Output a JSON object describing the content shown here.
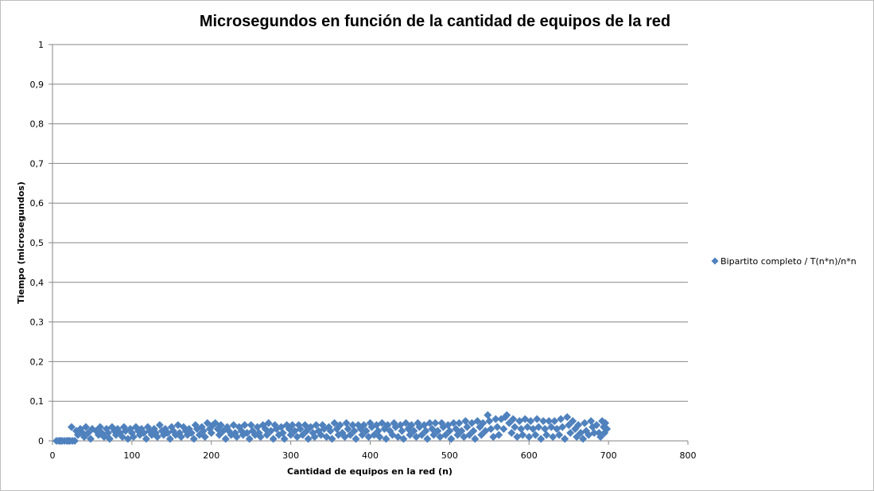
{
  "chart_data": {
    "type": "scatter",
    "title": "Microsegundos en función de la cantidad de equipos de la red",
    "xlabel": "Cantidad  de equipos en la red (n)",
    "ylabel": "Tiempo (microsegundos)",
    "xlim": [
      0,
      800
    ],
    "ylim": [
      0,
      1
    ],
    "x_ticks": [
      "0",
      "100",
      "200",
      "300",
      "400",
      "500",
      "600",
      "700",
      "800"
    ],
    "y_ticks": [
      "0",
      "0,1",
      "0,2",
      "0,3",
      "0,4",
      "0,5",
      "0,6",
      "0,7",
      "0,8",
      "0,9",
      "1"
    ],
    "grid": "horizontal",
    "legend_position": "right",
    "colors": {
      "series": "#4f81bd",
      "grid": "#868686",
      "axis": "#868686"
    },
    "series": [
      {
        "name": "Bipartito completo / T(n*n)/n*n",
        "marker": "diamond",
        "points": [
          [
            5,
            0.0
          ],
          [
            8,
            0.0
          ],
          [
            10,
            0.0
          ],
          [
            12,
            0.0
          ],
          [
            15,
            0.0
          ],
          [
            18,
            0.0
          ],
          [
            20,
            0.0
          ],
          [
            22,
            0.0
          ],
          [
            25,
            0.0
          ],
          [
            28,
            0.0
          ],
          [
            24,
            0.035
          ],
          [
            30,
            0.025
          ],
          [
            32,
            0.015
          ],
          [
            35,
            0.03
          ],
          [
            38,
            0.02
          ],
          [
            40,
            0.01
          ],
          [
            42,
            0.035
          ],
          [
            45,
            0.02
          ],
          [
            48,
            0.005
          ],
          [
            50,
            0.03
          ],
          [
            55,
            0.025
          ],
          [
            58,
            0.015
          ],
          [
            60,
            0.035
          ],
          [
            62,
            0.02
          ],
          [
            65,
            0.01
          ],
          [
            68,
            0.03
          ],
          [
            70,
            0.02
          ],
          [
            72,
            0.005
          ],
          [
            75,
            0.035
          ],
          [
            78,
            0.025
          ],
          [
            80,
            0.015
          ],
          [
            82,
            0.03
          ],
          [
            85,
            0.02
          ],
          [
            88,
            0.01
          ],
          [
            90,
            0.035
          ],
          [
            92,
            0.025
          ],
          [
            95,
            0.005
          ],
          [
            98,
            0.03
          ],
          [
            100,
            0.02
          ],
          [
            102,
            0.01
          ],
          [
            105,
            0.035
          ],
          [
            108,
            0.025
          ],
          [
            110,
            0.015
          ],
          [
            112,
            0.03
          ],
          [
            115,
            0.02
          ],
          [
            118,
            0.005
          ],
          [
            120,
            0.035
          ],
          [
            122,
            0.025
          ],
          [
            125,
            0.015
          ],
          [
            128,
            0.03
          ],
          [
            130,
            0.02
          ],
          [
            132,
            0.01
          ],
          [
            135,
            0.04
          ],
          [
            138,
            0.025
          ],
          [
            140,
            0.015
          ],
          [
            142,
            0.03
          ],
          [
            145,
            0.02
          ],
          [
            148,
            0.005
          ],
          [
            150,
            0.035
          ],
          [
            152,
            0.025
          ],
          [
            155,
            0.015
          ],
          [
            158,
            0.04
          ],
          [
            160,
            0.02
          ],
          [
            162,
            0.01
          ],
          [
            165,
            0.035
          ],
          [
            168,
            0.025
          ],
          [
            170,
            0.015
          ],
          [
            172,
            0.03
          ],
          [
            175,
            0.02
          ],
          [
            178,
            0.005
          ],
          [
            180,
            0.04
          ],
          [
            182,
            0.03
          ],
          [
            185,
            0.015
          ],
          [
            188,
            0.035
          ],
          [
            190,
            0.025
          ],
          [
            192,
            0.01
          ],
          [
            195,
            0.045
          ],
          [
            198,
            0.03
          ],
          [
            200,
            0.02
          ],
          [
            202,
            0.04
          ],
          [
            205,
            0.045
          ],
          [
            208,
            0.03
          ],
          [
            210,
            0.015
          ],
          [
            212,
            0.04
          ],
          [
            215,
            0.025
          ],
          [
            218,
            0.005
          ],
          [
            220,
            0.035
          ],
          [
            222,
            0.025
          ],
          [
            225,
            0.015
          ],
          [
            228,
            0.04
          ],
          [
            230,
            0.02
          ],
          [
            232,
            0.01
          ],
          [
            235,
            0.035
          ],
          [
            238,
            0.025
          ],
          [
            240,
            0.015
          ],
          [
            242,
            0.04
          ],
          [
            245,
            0.02
          ],
          [
            248,
            0.005
          ],
          [
            250,
            0.04
          ],
          [
            252,
            0.025
          ],
          [
            255,
            0.015
          ],
          [
            258,
            0.035
          ],
          [
            260,
            0.02
          ],
          [
            262,
            0.01
          ],
          [
            265,
            0.04
          ],
          [
            268,
            0.03
          ],
          [
            270,
            0.015
          ],
          [
            272,
            0.045
          ],
          [
            275,
            0.025
          ],
          [
            278,
            0.005
          ],
          [
            280,
            0.04
          ],
          [
            282,
            0.03
          ],
          [
            285,
            0.015
          ],
          [
            288,
            0.035
          ],
          [
            290,
            0.02
          ],
          [
            292,
            0.005
          ],
          [
            295,
            0.04
          ],
          [
            298,
            0.03
          ],
          [
            300,
            0.015
          ],
          [
            302,
            0.04
          ],
          [
            305,
            0.025
          ],
          [
            308,
            0.01
          ],
          [
            310,
            0.04
          ],
          [
            312,
            0.03
          ],
          [
            315,
            0.015
          ],
          [
            318,
            0.04
          ],
          [
            320,
            0.025
          ],
          [
            322,
            0.005
          ],
          [
            325,
            0.035
          ],
          [
            328,
            0.02
          ],
          [
            330,
            0.01
          ],
          [
            332,
            0.04
          ],
          [
            335,
            0.025
          ],
          [
            338,
            0.015
          ],
          [
            340,
            0.04
          ],
          [
            342,
            0.03
          ],
          [
            345,
            0.01
          ],
          [
            348,
            0.035
          ],
          [
            350,
            0.025
          ],
          [
            352,
            0.005
          ],
          [
            355,
            0.045
          ],
          [
            358,
            0.03
          ],
          [
            360,
            0.015
          ],
          [
            362,
            0.04
          ],
          [
            365,
            0.02
          ],
          [
            368,
            0.01
          ],
          [
            370,
            0.045
          ],
          [
            372,
            0.03
          ],
          [
            375,
            0.015
          ],
          [
            378,
            0.04
          ],
          [
            380,
            0.025
          ],
          [
            382,
            0.005
          ],
          [
            385,
            0.04
          ],
          [
            388,
            0.03
          ],
          [
            390,
            0.015
          ],
          [
            392,
            0.04
          ],
          [
            395,
            0.025
          ],
          [
            398,
            0.01
          ],
          [
            400,
            0.045
          ],
          [
            402,
            0.035
          ],
          [
            405,
            0.015
          ],
          [
            408,
            0.04
          ],
          [
            410,
            0.025
          ],
          [
            412,
            0.01
          ],
          [
            415,
            0.045
          ],
          [
            418,
            0.03
          ],
          [
            420,
            0.005
          ],
          [
            422,
            0.04
          ],
          [
            425,
            0.025
          ],
          [
            428,
            0.015
          ],
          [
            430,
            0.045
          ],
          [
            432,
            0.035
          ],
          [
            435,
            0.01
          ],
          [
            438,
            0.04
          ],
          [
            440,
            0.025
          ],
          [
            442,
            0.005
          ],
          [
            445,
            0.045
          ],
          [
            448,
            0.03
          ],
          [
            450,
            0.015
          ],
          [
            452,
            0.04
          ],
          [
            455,
            0.025
          ],
          [
            458,
            0.01
          ],
          [
            460,
            0.045
          ],
          [
            462,
            0.035
          ],
          [
            465,
            0.015
          ],
          [
            468,
            0.04
          ],
          [
            470,
            0.025
          ],
          [
            472,
            0.005
          ],
          [
            475,
            0.045
          ],
          [
            478,
            0.03
          ],
          [
            480,
            0.015
          ],
          [
            482,
            0.045
          ],
          [
            485,
            0.025
          ],
          [
            488,
            0.01
          ],
          [
            490,
            0.045
          ],
          [
            492,
            0.035
          ],
          [
            495,
            0.015
          ],
          [
            498,
            0.04
          ],
          [
            500,
            0.025
          ],
          [
            502,
            0.005
          ],
          [
            505,
            0.045
          ],
          [
            508,
            0.03
          ],
          [
            510,
            0.015
          ],
          [
            512,
            0.045
          ],
          [
            515,
            0.025
          ],
          [
            518,
            0.01
          ],
          [
            520,
            0.05
          ],
          [
            522,
            0.035
          ],
          [
            525,
            0.015
          ],
          [
            528,
            0.045
          ],
          [
            530,
            0.025
          ],
          [
            532,
            0.005
          ],
          [
            535,
            0.05
          ],
          [
            538,
            0.035
          ],
          [
            540,
            0.015
          ],
          [
            542,
            0.045
          ],
          [
            545,
            0.025
          ],
          [
            548,
            0.065
          ],
          [
            550,
            0.05
          ],
          [
            552,
            0.03
          ],
          [
            555,
            0.01
          ],
          [
            558,
            0.055
          ],
          [
            560,
            0.035
          ],
          [
            562,
            0.015
          ],
          [
            565,
            0.055
          ],
          [
            568,
            0.03
          ],
          [
            570,
            0.06
          ],
          [
            572,
            0.065
          ],
          [
            575,
            0.045
          ],
          [
            578,
            0.02
          ],
          [
            580,
            0.055
          ],
          [
            582,
            0.035
          ],
          [
            585,
            0.01
          ],
          [
            588,
            0.05
          ],
          [
            590,
            0.03
          ],
          [
            592,
            0.015
          ],
          [
            595,
            0.055
          ],
          [
            598,
            0.035
          ],
          [
            600,
            0.01
          ],
          [
            602,
            0.05
          ],
          [
            605,
            0.03
          ],
          [
            608,
            0.015
          ],
          [
            610,
            0.055
          ],
          [
            612,
            0.035
          ],
          [
            615,
            0.005
          ],
          [
            618,
            0.05
          ],
          [
            620,
            0.03
          ],
          [
            622,
            0.015
          ],
          [
            625,
            0.05
          ],
          [
            628,
            0.035
          ],
          [
            630,
            0.01
          ],
          [
            632,
            0.05
          ],
          [
            635,
            0.03
          ],
          [
            638,
            0.015
          ],
          [
            640,
            0.055
          ],
          [
            642,
            0.035
          ],
          [
            645,
            0.005
          ],
          [
            648,
            0.06
          ],
          [
            650,
            0.04
          ],
          [
            652,
            0.02
          ],
          [
            655,
            0.05
          ],
          [
            658,
            0.03
          ],
          [
            660,
            0.01
          ],
          [
            662,
            0.04
          ],
          [
            665,
            0.02
          ],
          [
            668,
            0.005
          ],
          [
            670,
            0.045
          ],
          [
            672,
            0.025
          ],
          [
            675,
            0.015
          ],
          [
            678,
            0.05
          ],
          [
            680,
            0.035
          ],
          [
            682,
            0.02
          ],
          [
            685,
            0.04
          ],
          [
            688,
            0.02
          ],
          [
            690,
            0.01
          ],
          [
            692,
            0.05
          ],
          [
            694,
            0.035
          ],
          [
            695,
            0.02
          ],
          [
            696,
            0.045
          ],
          [
            698,
            0.03
          ]
        ]
      }
    ]
  }
}
